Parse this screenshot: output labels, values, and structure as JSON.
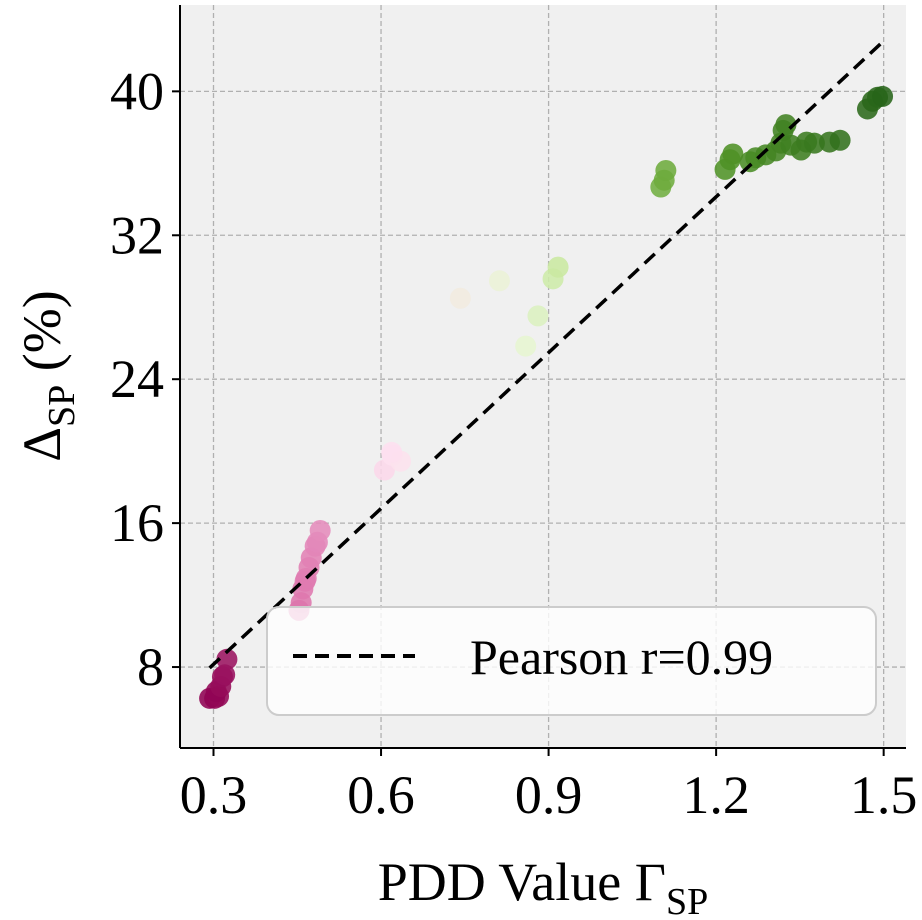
{
  "chart_data": {
    "type": "scatter",
    "xlabel": "PDD Value Γ",
    "xlabel_sub": "SP",
    "ylabel": "Δ",
    "ylabel_sub": "SP",
    "ylabel_suffix": " (%)",
    "xlim": [
      0.24,
      1.54
    ],
    "ylim": [
      3.5,
      44.8
    ],
    "xticks": [
      0.3,
      0.6,
      0.9,
      1.2,
      1.5
    ],
    "xtick_labels": [
      "0.3",
      "0.6",
      "0.9",
      "1.2",
      "1.5"
    ],
    "yticks": [
      8,
      16,
      24,
      32,
      40
    ],
    "ytick_labels": [
      "8",
      "16",
      "24",
      "32",
      "40"
    ],
    "grid": true,
    "background": "#f0f0f0",
    "colormap": "PiYG",
    "color_stops": [
      {
        "x": 0.3,
        "color": "#8e0152"
      },
      {
        "x": 0.46,
        "color": "#de77ae"
      },
      {
        "x": 0.62,
        "color": "#fde0ef"
      },
      {
        "x": 0.86,
        "color": "#e6f5d0"
      },
      {
        "x": 0.95,
        "color": "#b8e186"
      },
      {
        "x": 1.15,
        "color": "#5a9e2a"
      },
      {
        "x": 1.5,
        "color": "#276419"
      }
    ],
    "points": [
      {
        "x": 0.293,
        "y": 6.26
      },
      {
        "x": 0.302,
        "y": 6.26
      },
      {
        "x": 0.309,
        "y": 6.37
      },
      {
        "x": 0.305,
        "y": 6.64
      },
      {
        "x": 0.313,
        "y": 6.92
      },
      {
        "x": 0.316,
        "y": 7.46
      },
      {
        "x": 0.32,
        "y": 7.57
      },
      {
        "x": 0.324,
        "y": 8.43
      },
      {
        "x": 0.453,
        "y": 11.15
      },
      {
        "x": 0.457,
        "y": 11.58
      },
      {
        "x": 0.46,
        "y": 12.34
      },
      {
        "x": 0.464,
        "y": 12.77
      },
      {
        "x": 0.466,
        "y": 12.93
      },
      {
        "x": 0.471,
        "y": 13.53
      },
      {
        "x": 0.475,
        "y": 14.07
      },
      {
        "x": 0.482,
        "y": 14.72
      },
      {
        "x": 0.486,
        "y": 14.94
      },
      {
        "x": 0.491,
        "y": 15.59
      },
      {
        "x": 0.606,
        "y": 18.95
      },
      {
        "x": 0.62,
        "y": 19.77
      },
      {
        "x": 0.635,
        "y": 19.44
      },
      {
        "x": 0.619,
        "y": 19.93
      },
      {
        "x": 0.742,
        "y": 28.5
      },
      {
        "x": 0.812,
        "y": 29.47
      },
      {
        "x": 0.881,
        "y": 27.52
      },
      {
        "x": 0.859,
        "y": 25.84
      },
      {
        "x": 0.908,
        "y": 29.58
      },
      {
        "x": 0.917,
        "y": 30.23
      },
      {
        "x": 1.101,
        "y": 34.68
      },
      {
        "x": 1.107,
        "y": 35.06
      },
      {
        "x": 1.11,
        "y": 35.6
      },
      {
        "x": 1.216,
        "y": 35.66
      },
      {
        "x": 1.225,
        "y": 36.2
      },
      {
        "x": 1.23,
        "y": 36.52
      },
      {
        "x": 1.261,
        "y": 36.09
      },
      {
        "x": 1.271,
        "y": 36.31
      },
      {
        "x": 1.289,
        "y": 36.47
      },
      {
        "x": 1.307,
        "y": 36.69
      },
      {
        "x": 1.316,
        "y": 37.12
      },
      {
        "x": 1.32,
        "y": 37.83
      },
      {
        "x": 1.325,
        "y": 38.15
      },
      {
        "x": 1.334,
        "y": 37.01
      },
      {
        "x": 1.352,
        "y": 36.74
      },
      {
        "x": 1.362,
        "y": 37.18
      },
      {
        "x": 1.376,
        "y": 37.12
      },
      {
        "x": 1.403,
        "y": 37.18
      },
      {
        "x": 1.422,
        "y": 37.28
      },
      {
        "x": 1.471,
        "y": 39.02
      },
      {
        "x": 1.48,
        "y": 39.45
      },
      {
        "x": 1.489,
        "y": 39.67
      },
      {
        "x": 1.498,
        "y": 39.72
      }
    ],
    "fit_line": {
      "x": [
        0.293,
        1.5
      ],
      "y": [
        7.95,
        42.8
      ],
      "style": "dashed",
      "color": "#000000"
    },
    "legend": {
      "label": "Pearson r=0.99",
      "placement": "lower-right"
    }
  }
}
